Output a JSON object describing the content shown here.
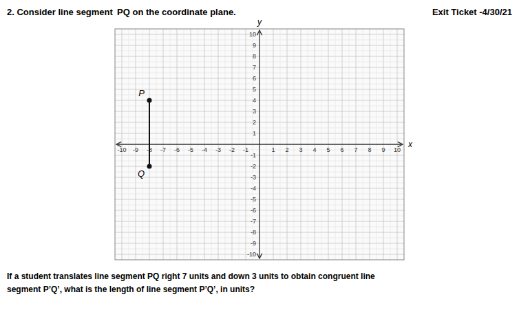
{
  "chart_data": {
    "type": "line",
    "title": "2.   Consider line segment  PQ on the coordinate plane.",
    "subtitle": "Exit Ticket -4/30/21",
    "annotations": [
      "If a student translates line segment PQ right 7 units and down 3 units to obtain congruent line",
      "segment P’Q’, what is the length of line segment P’Q’, in units?"
    ],
    "xlabel": "x",
    "ylabel": "y",
    "x": [
      -8,
      -8
    ],
    "values": [
      4,
      -2
    ],
    "point_labels": [
      "P",
      "Q"
    ],
    "color": "#111111",
    "marker": "circle",
    "line_style": "solid",
    "xlim": [
      -10.5,
      10.5
    ],
    "ylim": [
      -10.5,
      10.5
    ],
    "xticks": [
      -10,
      -9,
      -8,
      -7,
      -6,
      -5,
      -4,
      -3,
      -2,
      -1,
      1,
      2,
      3,
      4,
      5,
      6,
      7,
      8,
      9,
      10
    ],
    "yticks": [
      -10,
      -9,
      -8,
      -7,
      -6,
      -5,
      -4,
      -3,
      -2,
      -1,
      1,
      2,
      3,
      4,
      5,
      6,
      7,
      8,
      9,
      10
    ],
    "grid": true
  }
}
